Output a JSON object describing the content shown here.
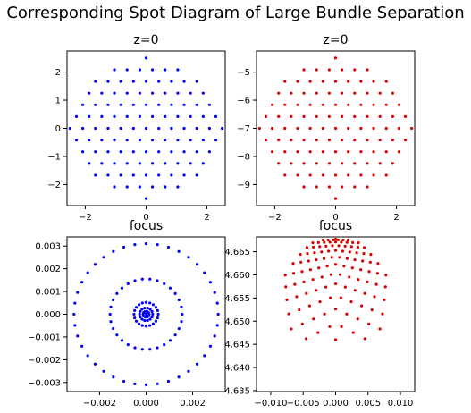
{
  "figure": {
    "title": "Corresponding Spot Diagram of Large Bundle Separation"
  },
  "chart_data": [
    {
      "type": "scatter",
      "title": "z=0",
      "color": "#0000ff",
      "xlim": [
        -2.6,
        2.6
      ],
      "ylim": [
        -2.75,
        2.75
      ],
      "xticks": [
        -2,
        0,
        2
      ],
      "xtick_labels": [
        "−2",
        "0",
        "2"
      ],
      "yticks": [
        2,
        1,
        0,
        -1,
        -2
      ],
      "ytick_labels": [
        "2",
        "1",
        "0",
        "−1",
        "−2"
      ],
      "pattern": {
        "kind": "hex_pupil",
        "cx": 0,
        "cy": 0,
        "rx": 2.5,
        "ry": 2.5,
        "rows": 13
      }
    },
    {
      "type": "scatter",
      "title": "z=0",
      "color": "#dd0000",
      "xlim": [
        -2.6,
        2.6
      ],
      "ylim": [
        -9.75,
        -4.25
      ],
      "xticks": [
        -2,
        0,
        2
      ],
      "xtick_labels": [
        "−2",
        "0",
        "2"
      ],
      "yticks": [
        -5,
        -6,
        -7,
        -8,
        -9
      ],
      "ytick_labels": [
        "−5",
        "−6",
        "−7",
        "−8",
        "−9"
      ],
      "pattern": {
        "kind": "hex_pupil",
        "cx": 0,
        "cy": -7,
        "rx": 2.5,
        "ry": 2.5,
        "rows": 13
      }
    },
    {
      "type": "scatter",
      "title": "focus",
      "color": "#0000ff",
      "xlim": [
        -0.0034,
        0.0034
      ],
      "ylim": [
        -0.0034,
        0.0034
      ],
      "xticks": [
        -0.002,
        0,
        0.002
      ],
      "xtick_labels": [
        "−0.002",
        "0.000",
        "0.002"
      ],
      "yticks": [
        0.003,
        0.002,
        0.001,
        0,
        -0.001,
        -0.002,
        -0.003
      ],
      "ytick_labels": [
        "0.003",
        "0.002",
        "0.001",
        "0.000",
        "−0.001",
        "−0.002",
        "−0.003"
      ],
      "pattern": {
        "kind": "rings",
        "cx": 0,
        "cy": 0,
        "rings": [
          [
            0.0031,
            40
          ],
          [
            0.00155,
            30
          ],
          [
            0.00052,
            20
          ],
          [
            0.00028,
            14
          ],
          [
            0.00013,
            10
          ],
          [
            0,
            1
          ]
        ]
      }
    },
    {
      "type": "scatter",
      "title": "focus",
      "color": "#dd0000",
      "xlim": [
        -0.0122,
        0.0122
      ],
      "ylim": [
        4.6348,
        4.6682
      ],
      "xticks": [
        -0.01,
        -0.005,
        0,
        0.005,
        0.01
      ],
      "xtick_labels": [
        "−0.010",
        "−0.005",
        "0.000",
        "0.005",
        "0.010"
      ],
      "yticks": [
        4.665,
        4.66,
        4.655,
        4.65,
        4.645,
        4.64,
        4.635
      ],
      "ytick_labels": [
        "4.665",
        "4.660",
        "4.655",
        "4.650",
        "4.645",
        "4.640",
        "4.635"
      ],
      "pattern": {
        "kind": "warped_pupil",
        "cx": 0,
        "top": 4.6677,
        "rx": 0.0115,
        "depth": 0.031,
        "rows": 13
      }
    }
  ]
}
